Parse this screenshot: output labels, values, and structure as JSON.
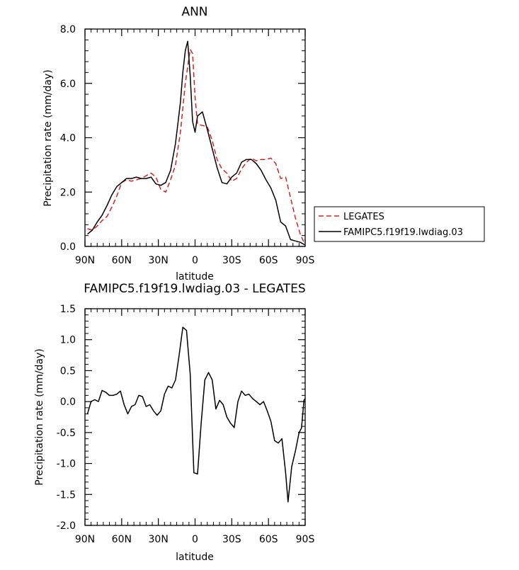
{
  "chart_data": [
    {
      "type": "line",
      "title": "ANN",
      "xlabel": "latitude",
      "ylabel": "Precipitation rate (mm/day)",
      "xlim": [
        90,
        -90
      ],
      "ylim": [
        0,
        8
      ],
      "x_ticks": [
        90,
        60,
        30,
        0,
        -30,
        -60,
        -90
      ],
      "x_tick_labels": [
        "90N",
        "60N",
        "30N",
        "0",
        "30S",
        "60S",
        "90S"
      ],
      "y_ticks": [
        0,
        2,
        4,
        6,
        8
      ],
      "y_tick_labels": [
        "0.0",
        "2.0",
        "4.0",
        "6.0",
        "8.0"
      ],
      "legend_position": "right",
      "series": [
        {
          "name": "LEGATES",
          "color": "#e0201b",
          "dash": "dashed",
          "points": [
            [
              88,
              0.65
            ],
            [
              84,
              0.6
            ],
            [
              80,
              0.75
            ],
            [
              76,
              0.95
            ],
            [
              72,
              1.1
            ],
            [
              68,
              1.45
            ],
            [
              64,
              1.85
            ],
            [
              60,
              2.35
            ],
            [
              56,
              2.45
            ],
            [
              52,
              2.4
            ],
            [
              48,
              2.45
            ],
            [
              44,
              2.5
            ],
            [
              40,
              2.6
            ],
            [
              36,
              2.7
            ],
            [
              32,
              2.55
            ],
            [
              28,
              2.1
            ],
            [
              24,
              2.0
            ],
            [
              20,
              2.45
            ],
            [
              16,
              3.0
            ],
            [
              12,
              4.2
            ],
            [
              8,
              6.0
            ],
            [
              4,
              7.25
            ],
            [
              2,
              7.1
            ],
            [
              0,
              5.5
            ],
            [
              -2,
              4.5
            ],
            [
              -6,
              4.45
            ],
            [
              -10,
              4.4
            ],
            [
              -14,
              3.9
            ],
            [
              -18,
              3.2
            ],
            [
              -22,
              2.85
            ],
            [
              -26,
              2.7
            ],
            [
              -30,
              2.4
            ],
            [
              -34,
              2.5
            ],
            [
              -38,
              2.85
            ],
            [
              -42,
              3.1
            ],
            [
              -46,
              3.25
            ],
            [
              -50,
              3.15
            ],
            [
              -54,
              3.2
            ],
            [
              -58,
              3.2
            ],
            [
              -62,
              3.25
            ],
            [
              -66,
              3.05
            ],
            [
              -70,
              2.5
            ],
            [
              -74,
              2.55
            ],
            [
              -78,
              1.8
            ],
            [
              -82,
              1.05
            ],
            [
              -86,
              0.45
            ],
            [
              -90,
              0.05
            ]
          ]
        },
        {
          "name": "FAMIPC5.f19f19.lwdiag.03",
          "color": "#000000",
          "dash": "solid",
          "points": [
            [
              88,
              0.45
            ],
            [
              84,
              0.6
            ],
            [
              80,
              0.9
            ],
            [
              76,
              1.15
            ],
            [
              72,
              1.5
            ],
            [
              68,
              1.9
            ],
            [
              64,
              2.2
            ],
            [
              60,
              2.35
            ],
            [
              56,
              2.5
            ],
            [
              52,
              2.5
            ],
            [
              48,
              2.55
            ],
            [
              44,
              2.5
            ],
            [
              40,
              2.5
            ],
            [
              36,
              2.55
            ],
            [
              32,
              2.3
            ],
            [
              28,
              2.25
            ],
            [
              24,
              2.35
            ],
            [
              20,
              2.8
            ],
            [
              16,
              3.8
            ],
            [
              12,
              5.3
            ],
            [
              10,
              6.4
            ],
            [
              8,
              7.2
            ],
            [
              6,
              7.55
            ],
            [
              4,
              6.3
            ],
            [
              2,
              4.6
            ],
            [
              0,
              4.2
            ],
            [
              -2,
              4.8
            ],
            [
              -6,
              4.95
            ],
            [
              -10,
              4.3
            ],
            [
              -14,
              3.6
            ],
            [
              -18,
              2.9
            ],
            [
              -22,
              2.35
            ],
            [
              -26,
              2.3
            ],
            [
              -30,
              2.55
            ],
            [
              -34,
              2.7
            ],
            [
              -38,
              3.1
            ],
            [
              -42,
              3.2
            ],
            [
              -46,
              3.2
            ],
            [
              -50,
              3.05
            ],
            [
              -54,
              2.8
            ],
            [
              -58,
              2.45
            ],
            [
              -62,
              2.15
            ],
            [
              -66,
              1.7
            ],
            [
              -70,
              0.9
            ],
            [
              -74,
              0.75
            ],
            [
              -78,
              0.25
            ],
            [
              -82,
              0.2
            ],
            [
              -86,
              0.15
            ],
            [
              -90,
              0.05
            ]
          ]
        }
      ]
    },
    {
      "type": "line",
      "title": "FAMIPC5.f19f19.lwdiag.03 - LEGATES",
      "xlabel": "latitude",
      "ylabel": "Precipitation rate (mm/day)",
      "xlim": [
        90,
        -90
      ],
      "ylim": [
        -2,
        1.5
      ],
      "x_ticks": [
        90,
        60,
        30,
        0,
        -30,
        -60,
        -90
      ],
      "x_tick_labels": [
        "90N",
        "60N",
        "30N",
        "0",
        "30S",
        "60S",
        "90S"
      ],
      "y_ticks": [
        -2,
        -1.5,
        -1,
        -0.5,
        0,
        0.5,
        1,
        1.5
      ],
      "y_tick_labels": [
        "-2.0",
        "-1.5",
        "-1.0",
        "-0.5",
        "0.0",
        "0.5",
        "1.0",
        "1.5"
      ],
      "series": [
        {
          "color": "#000000",
          "dash": "solid",
          "points": [
            [
              88,
              -0.2
            ],
            [
              85,
              0.0
            ],
            [
              82,
              0.03
            ],
            [
              79,
              0.0
            ],
            [
              76,
              0.18
            ],
            [
              73,
              0.15
            ],
            [
              70,
              0.1
            ],
            [
              67,
              0.1
            ],
            [
              64,
              0.12
            ],
            [
              61,
              0.17
            ],
            [
              58,
              -0.05
            ],
            [
              55,
              -0.2
            ],
            [
              52,
              -0.08
            ],
            [
              49,
              -0.05
            ],
            [
              46,
              0.1
            ],
            [
              43,
              0.08
            ],
            [
              40,
              -0.08
            ],
            [
              37,
              -0.05
            ],
            [
              34,
              -0.15
            ],
            [
              31,
              -0.22
            ],
            [
              28,
              -0.15
            ],
            [
              25,
              0.12
            ],
            [
              22,
              0.25
            ],
            [
              19,
              0.22
            ],
            [
              16,
              0.35
            ],
            [
              13,
              0.75
            ],
            [
              10,
              1.2
            ],
            [
              7,
              1.15
            ],
            [
              4,
              0.45
            ],
            [
              1,
              -1.15
            ],
            [
              -2,
              -1.17
            ],
            [
              -5,
              -0.35
            ],
            [
              -8,
              0.35
            ],
            [
              -11,
              0.47
            ],
            [
              -14,
              0.35
            ],
            [
              -17,
              -0.12
            ],
            [
              -20,
              0.02
            ],
            [
              -23,
              -0.05
            ],
            [
              -26,
              -0.25
            ],
            [
              -29,
              -0.35
            ],
            [
              -32,
              -0.42
            ],
            [
              -35,
              0.0
            ],
            [
              -38,
              0.17
            ],
            [
              -41,
              0.1
            ],
            [
              -44,
              0.12
            ],
            [
              -47,
              0.05
            ],
            [
              -50,
              0.0
            ],
            [
              -53,
              -0.05
            ],
            [
              -56,
              0.0
            ],
            [
              -59,
              -0.15
            ],
            [
              -62,
              -0.32
            ],
            [
              -65,
              -0.63
            ],
            [
              -68,
              -0.67
            ],
            [
              -71,
              -0.6
            ],
            [
              -74,
              -1.15
            ],
            [
              -76,
              -1.62
            ],
            [
              -79,
              -1.05
            ],
            [
              -82,
              -0.8
            ],
            [
              -85,
              -0.5
            ],
            [
              -87,
              -0.43
            ],
            [
              -89,
              0.02
            ],
            [
              -90,
              0.05
            ]
          ]
        }
      ]
    }
  ]
}
